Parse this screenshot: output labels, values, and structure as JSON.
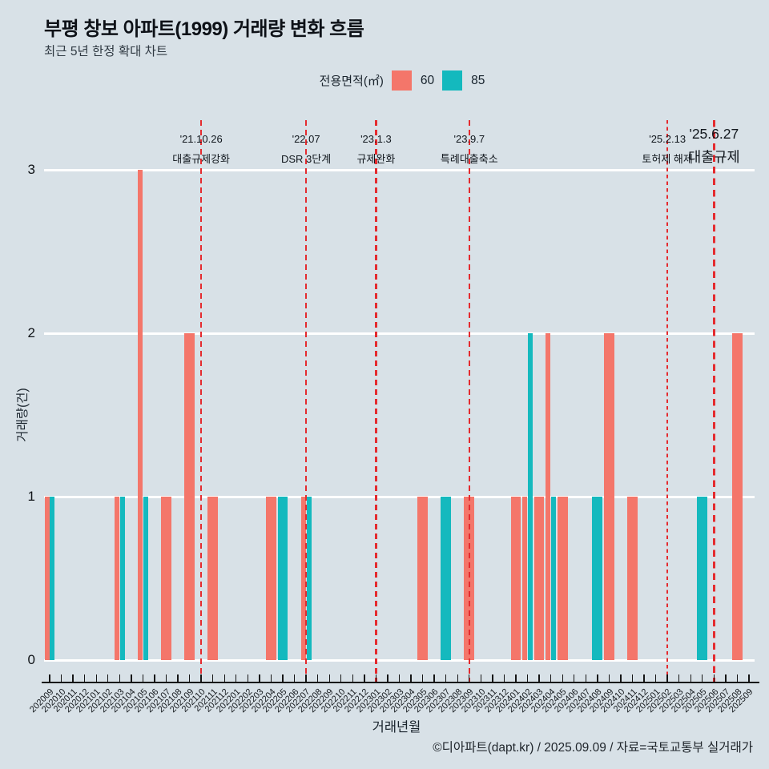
{
  "page": {
    "title": "부평 창보 아파트(1999) 거래량 변화 흐름",
    "subtitle": "최근 5년 한정 확대 차트",
    "footer": "©디아파트(dapt.kr) / 2025.09.09 / 자료=국토교통부 실거래가"
  },
  "legend": {
    "label": "전용면적(㎡)",
    "items": [
      {
        "name": "60",
        "color": "#F4766A"
      },
      {
        "name": "85",
        "color": "#14B9BE"
      }
    ]
  },
  "colors": {
    "background": "#D8E1E7",
    "gridline": "#FFFFFF",
    "axis": "#151515",
    "annotation_line": "#E42B2F",
    "series_60": "#F4766A",
    "series_85": "#14B9BE"
  },
  "chart_data": {
    "type": "bar",
    "title": "부평 창보 아파트(1999) 거래량 변화 흐름",
    "xlabel": "거래년월",
    "ylabel": "거래량(건)",
    "ylim": [
      0,
      3
    ],
    "yticks": [
      0,
      1,
      2,
      3
    ],
    "grid": "horizontal-white",
    "legend_position": "top-center",
    "categories": [
      "202009",
      "202010",
      "202011",
      "202012",
      "202101",
      "202102",
      "202103",
      "202104",
      "202105",
      "202106",
      "202107",
      "202108",
      "202109",
      "202110",
      "202111",
      "202112",
      "202201",
      "202202",
      "202203",
      "202204",
      "202205",
      "202206",
      "202207",
      "202208",
      "202209",
      "202210",
      "202211",
      "202212",
      "202301",
      "202302",
      "202303",
      "202304",
      "202305",
      "202306",
      "202307",
      "202308",
      "202309",
      "202310",
      "202311",
      "202312",
      "202401",
      "202402",
      "202403",
      "202404",
      "202405",
      "202406",
      "202407",
      "202408",
      "202409",
      "202410",
      "202411",
      "202412",
      "202501",
      "202502",
      "202503",
      "202504",
      "202505",
      "202506",
      "202507",
      "202508",
      "202509"
    ],
    "series": [
      {
        "name": "60",
        "color": "#F4766A",
        "values": [
          1,
          0,
          0,
          0,
          0,
          0,
          1,
          0,
          3,
          0,
          1,
          0,
          2,
          0,
          1,
          0,
          0,
          0,
          0,
          1,
          0,
          0,
          1,
          0,
          0,
          0,
          0,
          0,
          0,
          0,
          0,
          0,
          1,
          0,
          0,
          0,
          1,
          0,
          0,
          0,
          1,
          1,
          1,
          2,
          1,
          0,
          0,
          0,
          2,
          0,
          1,
          0,
          0,
          0,
          0,
          0,
          0,
          0,
          0,
          2,
          0
        ]
      },
      {
        "name": "85",
        "color": "#14B9BE",
        "values": [
          1,
          0,
          0,
          0,
          0,
          0,
          1,
          0,
          1,
          0,
          0,
          0,
          0,
          0,
          0,
          0,
          0,
          0,
          0,
          0,
          1,
          0,
          1,
          0,
          0,
          0,
          0,
          0,
          0,
          0,
          0,
          0,
          0,
          0,
          1,
          0,
          0,
          0,
          0,
          0,
          0,
          2,
          0,
          1,
          0,
          0,
          0,
          1,
          0,
          0,
          0,
          0,
          0,
          0,
          0,
          0,
          1,
          0,
          0,
          0,
          0
        ]
      }
    ],
    "annotations": [
      {
        "date": "'21.10.26",
        "label": "대출규제강화",
        "category": "202110",
        "size": "normal"
      },
      {
        "date": "'22.07",
        "label": "DSR 3단계",
        "category": "202207",
        "size": "normal"
      },
      {
        "date": "'23.1.3",
        "label": "규제완화",
        "category": "202301",
        "size": "normal"
      },
      {
        "date": "'23.9.7",
        "label": "특례대출축소",
        "category": "202309",
        "size": "normal"
      },
      {
        "date": "'25.2.13",
        "label": "토허제 해제",
        "category": "202502",
        "size": "small"
      },
      {
        "date": "'25.6.27",
        "label": "대출규제",
        "category": "202506",
        "size": "large"
      }
    ]
  }
}
